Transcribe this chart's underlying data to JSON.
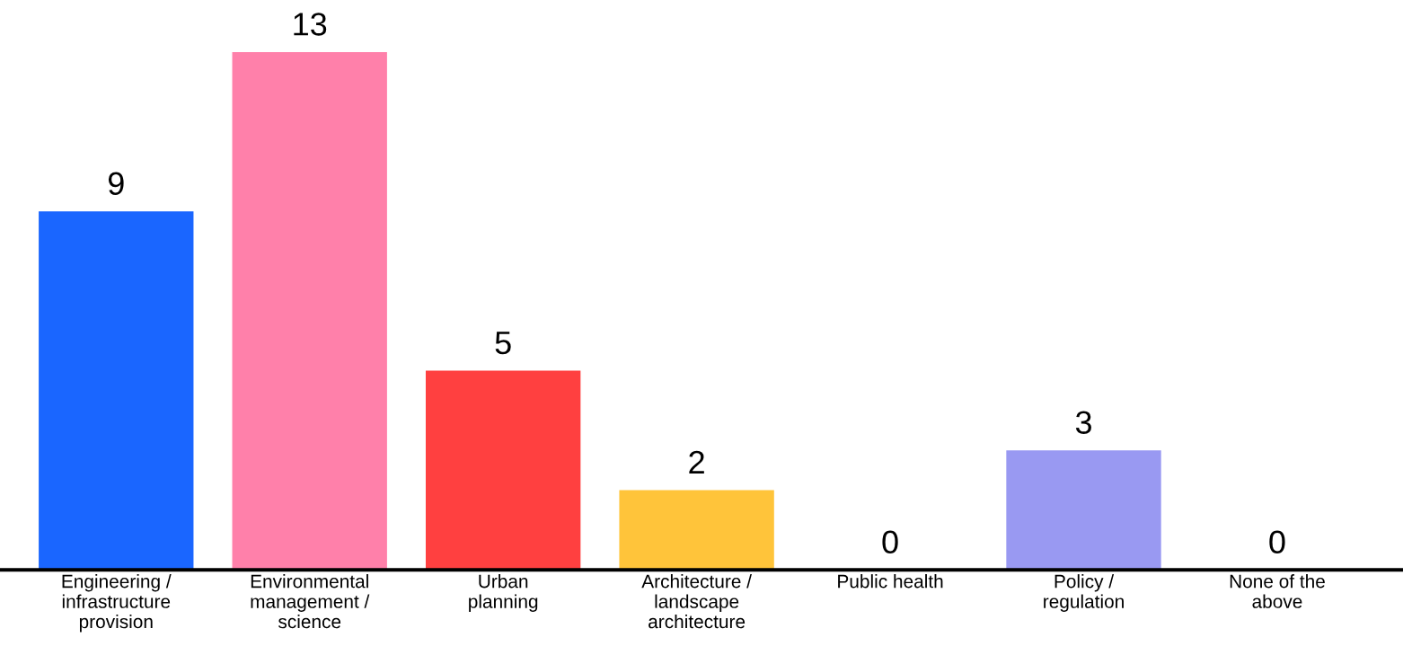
{
  "chart_data": {
    "type": "bar",
    "categories": [
      "Engineering /\ninfrastructure\nprovision",
      "Environmental\nmanagement /\nscience",
      "Urban\nplanning",
      "Architecture /\nlandscape\narchitecture",
      "Public health",
      "Policy /\nregulation",
      "None of the\nabove"
    ],
    "values": [
      9,
      13,
      5,
      2,
      0,
      3,
      0
    ],
    "colors": [
      "#1a66ff",
      "#ff80aa",
      "#ff4040",
      "#ffc43a",
      "#9999f2",
      "#9999f2",
      "#9999f2"
    ],
    "data_labels": true,
    "grid": false,
    "legend": false,
    "tick_labels": "x"
  }
}
